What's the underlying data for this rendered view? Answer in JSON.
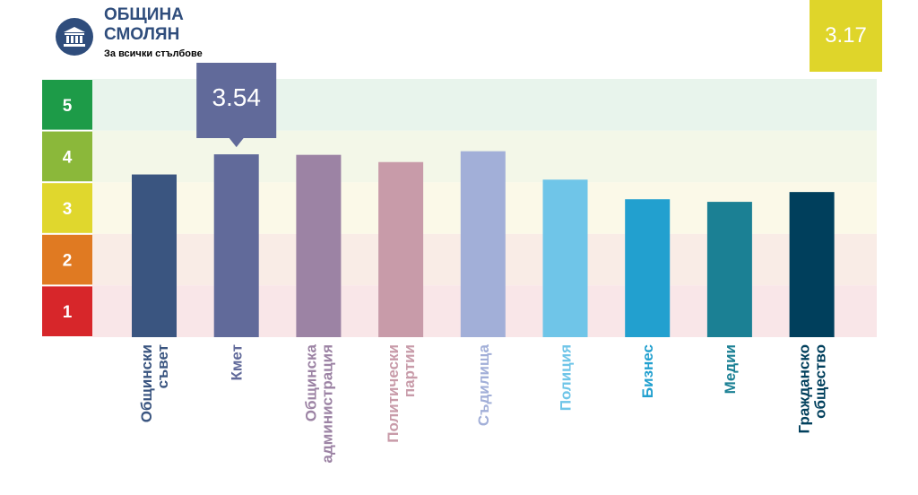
{
  "header": {
    "title_line1": "ОБЩИНА",
    "title_line2": "СМОЛЯН",
    "subtitle": "За всички стълбове",
    "icon": "building-columns-icon"
  },
  "overall_score": "3.17",
  "colors": {
    "brand": "#2f4d7c",
    "score_box": "#dfd52a",
    "level5": "#1d9b48",
    "level4": "#8bb83a",
    "level3": "#e0d72d",
    "level2": "#e07a22",
    "level1": "#d7262a"
  },
  "chart_data": {
    "type": "bar",
    "ylim": [
      0,
      5
    ],
    "levels": [
      "1",
      "2",
      "3",
      "4",
      "5"
    ],
    "categories": [
      "Общински съвет",
      "Кмет",
      "Общинска администрация",
      "Политически партии",
      "Съдилища",
      "Полиция",
      "Бизнес",
      "Медии",
      "Гражданско общество"
    ],
    "label_lines": [
      [
        "Общински",
        "съвет"
      ],
      [
        "Кмет"
      ],
      [
        "Общинска",
        "администрация"
      ],
      [
        "Политически",
        "партии"
      ],
      [
        "Съдилища"
      ],
      [
        "Полиция"
      ],
      [
        "Бизнес"
      ],
      [
        "Медии"
      ],
      [
        "Гражданско",
        "общество"
      ]
    ],
    "values": [
      3.15,
      3.54,
      3.53,
      3.39,
      3.6,
      3.05,
      2.67,
      2.62,
      2.81
    ],
    "colors": [
      "#3a5580",
      "#616a9a",
      "#9c83a4",
      "#c89ba9",
      "#a2afd8",
      "#6fc5e8",
      "#22a0cf",
      "#1b8094",
      "#003f5c"
    ],
    "label_colors": [
      "#3a5580",
      "#616a9a",
      "#9c83a4",
      "#c89ba9",
      "#a2afd8",
      "#6fc5e8",
      "#22a0cf",
      "#1b8094",
      "#003f5c"
    ],
    "highlight": {
      "index": 1,
      "label": "3.54",
      "color": "#616a9a"
    }
  }
}
